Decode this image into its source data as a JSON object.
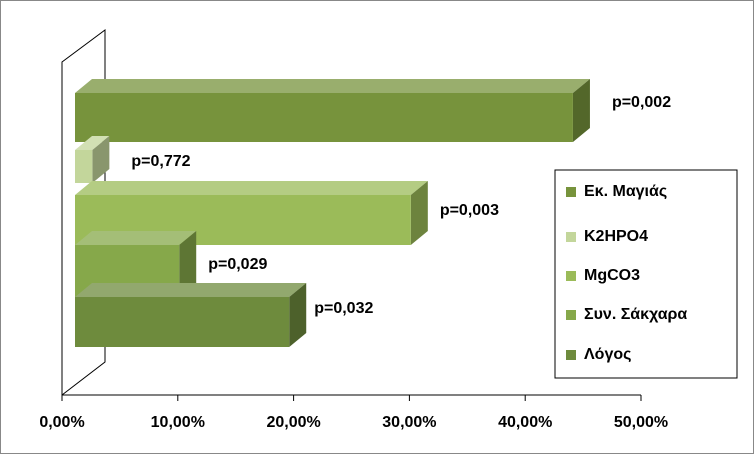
{
  "chart_data": {
    "type": "bar3d",
    "series": [
      {
        "name": "Εκ. Μαγιάς",
        "color": "#77933c",
        "values": [
          43
        ],
        "value_labels": [
          "p=0,002"
        ]
      },
      {
        "name": "K2HPO4",
        "color": "#c3d69b",
        "values": [
          1.5
        ],
        "value_labels": [
          "p=0,772"
        ]
      },
      {
        "name": "MgCO3",
        "color": "#9bbb59",
        "values": [
          29
        ],
        "value_labels": [
          "p=0,003"
        ]
      },
      {
        "name": "Συν. Σάκχαρα",
        "color": "#86a84a",
        "values": [
          9
        ],
        "value_labels": [
          "p=0,029"
        ]
      },
      {
        "name": "Λόγος",
        "color": "#6e8b3d",
        "values": [
          18.5
        ],
        "value_labels": [
          "p=0,032"
        ]
      }
    ],
    "xlim": [
      0,
      50
    ],
    "xticks": [
      {
        "value": 0,
        "label": "0,00%"
      },
      {
        "value": 10,
        "label": "10,00%"
      },
      {
        "value": 20,
        "label": "20,00%"
      },
      {
        "value": 30,
        "label": "30,00%"
      },
      {
        "value": 40,
        "label": "40,00%"
      },
      {
        "value": 50,
        "label": "50,00%"
      }
    ]
  }
}
